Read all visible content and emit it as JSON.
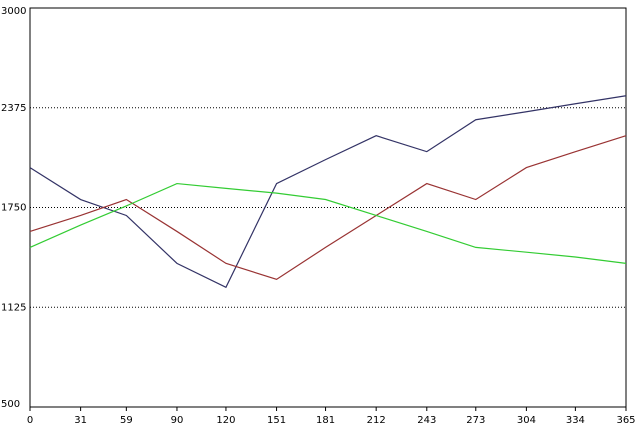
{
  "chart_data": {
    "type": "line",
    "x": [
      0,
      31,
      59,
      90,
      120,
      151,
      181,
      212,
      243,
      273,
      304,
      334,
      365
    ],
    "series": [
      {
        "color": "#333366",
        "values": [
          2000,
          1800,
          1700,
          1400,
          1250,
          1900,
          2050,
          2200,
          2100,
          2300,
          2350,
          2400,
          2450
        ]
      },
      {
        "color": "#993333",
        "values": [
          1600,
          1700,
          1800,
          1600,
          1400,
          1300,
          1500,
          1700,
          1900,
          1800,
          2000,
          2100,
          2200
        ]
      },
      {
        "color": "#33cc33",
        "values": [
          1500,
          1640,
          1760,
          1900,
          1870,
          1840,
          1800,
          1700,
          1600,
          1500,
          1470,
          1440,
          1400
        ]
      }
    ],
    "xlim": [
      0,
      365
    ],
    "xticks": [
      0,
      31,
      59,
      90,
      120,
      151,
      181,
      212,
      243,
      273,
      304,
      334,
      365
    ],
    "ylim": [
      500,
      3000
    ],
    "yticks": [
      500,
      1125,
      1750,
      2375,
      3000
    ],
    "grid": true
  }
}
